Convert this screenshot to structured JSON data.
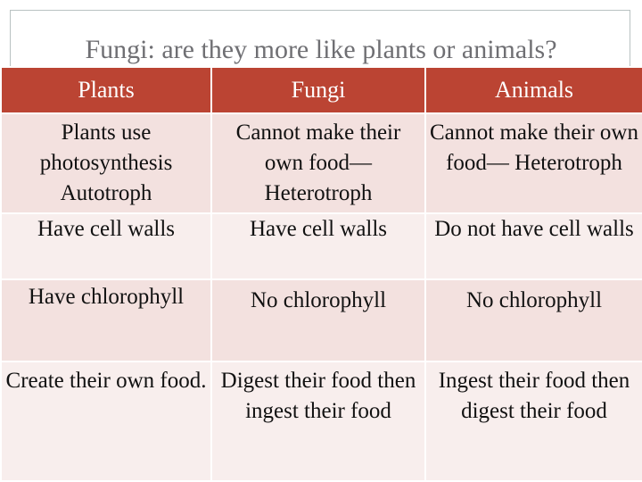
{
  "title": "Fungi: are they more like plants or animals?",
  "colors": {
    "header_bg": "#bb4433",
    "row_dark": "#f3e1df",
    "row_light": "#f8eeed"
  },
  "headers": [
    "Plants",
    "Fungi",
    "Animals"
  ],
  "rows": [
    [
      "Plants use photosynthesis Autotroph",
      "Cannot make their own food— Heterotroph",
      "Cannot make their own food— Heterotroph"
    ],
    [
      "Have cell walls",
      "Have cell walls",
      "Do not have cell walls"
    ],
    [
      "Have chlorophyll",
      "No chlorophyll",
      "No chlorophyll"
    ],
    [
      "Create their own food.",
      "Digest their food then ingest their food",
      "Ingest their food then digest their food"
    ]
  ]
}
